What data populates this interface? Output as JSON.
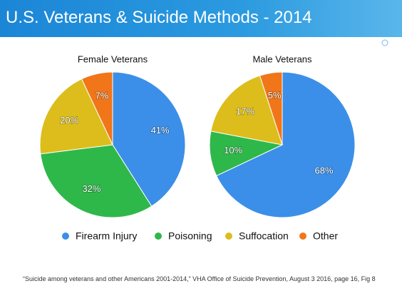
{
  "title": "U.S. Veterans & Suicide Methods - 2014",
  "chart_data": [
    {
      "type": "pie",
      "title": "Female Veterans",
      "categories": [
        "Firearm Injury",
        "Poisoning",
        "Suffocation",
        "Other"
      ],
      "values": [
        41,
        32,
        20,
        7
      ],
      "value_labels": [
        "41%",
        "32%",
        "20%",
        "7%"
      ],
      "colors": [
        "#3b8fe8",
        "#2fb84a",
        "#dcbd1c",
        "#f1761a"
      ]
    },
    {
      "type": "pie",
      "title": "Male Veterans",
      "categories": [
        "Firearm Injury",
        "Poisoning",
        "Suffocation",
        "Other"
      ],
      "values": [
        68,
        10,
        17,
        5
      ],
      "value_labels": [
        "68%",
        "10%",
        "17%",
        "5%"
      ],
      "colors": [
        "#3b8fe8",
        "#2fb84a",
        "#dcbd1c",
        "#f1761a"
      ]
    }
  ],
  "footnote": "“Suicide among veterans and other Americans 2001-2014,” VHA Office of Suicide Prevention, August 3 2016, page 16, Fig 8"
}
